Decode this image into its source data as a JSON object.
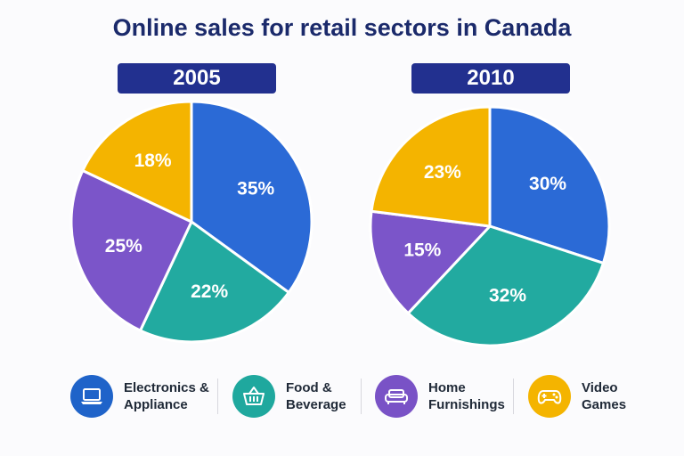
{
  "chart_data": {
    "type": "pie",
    "title": "Online sales for retail sectors in Canada",
    "categories": [
      "Electronics & Appliance",
      "Food & Beverage",
      "Home Furnishings",
      "Video Games"
    ],
    "colors": [
      "#2b6ad6",
      "#22aaa0",
      "#7b55c9",
      "#f4b400"
    ],
    "series": [
      {
        "name": "2005",
        "values": [
          35,
          22,
          25,
          18
        ],
        "labels": [
          "35%",
          "22%",
          "25%",
          "18%"
        ]
      },
      {
        "name": "2010",
        "values": [
          30,
          32,
          15,
          23
        ],
        "labels": [
          "30%",
          "32%",
          "15%",
          "23%"
        ]
      }
    ]
  },
  "legend": [
    {
      "label": "Electronics &\nAppliance",
      "icon": "laptop-icon",
      "color": "#1f63c9"
    },
    {
      "label": "Food &\nBeverage",
      "icon": "basket-icon",
      "color": "#1fa89e"
    },
    {
      "label": "Home\nFurnishings",
      "icon": "sofa-icon",
      "color": "#7952c6"
    },
    {
      "label": "Video\nGames",
      "icon": "gamepad-icon",
      "color": "#f4b400"
    }
  ]
}
